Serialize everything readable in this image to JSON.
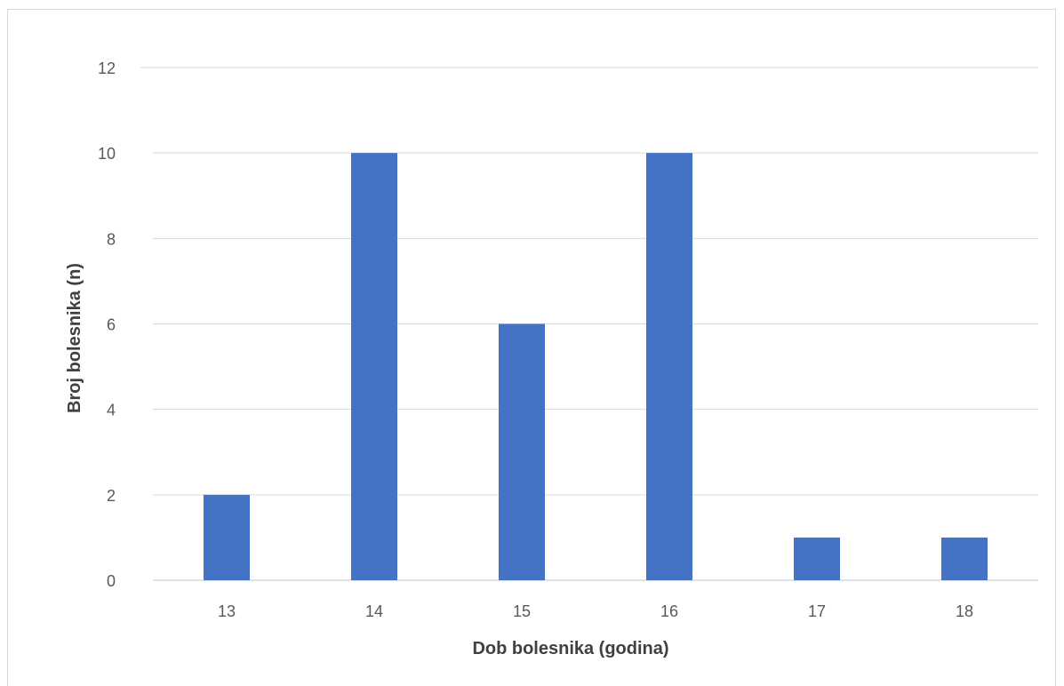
{
  "chart_data": {
    "type": "bar",
    "categories": [
      "13",
      "14",
      "15",
      "16",
      "17",
      "18"
    ],
    "values": [
      2,
      10,
      6,
      10,
      1,
      1
    ],
    "title": "",
    "xlabel": "Dob bolesnika (godina)",
    "ylabel": "Broj bolesnika (n)",
    "ylim": [
      0,
      12
    ],
    "yticks": [
      0,
      2,
      4,
      6,
      8,
      10,
      12
    ],
    "grid": true,
    "legend": "none",
    "bar_color": "#4472c4",
    "grid_color": "#d9d9d9"
  }
}
